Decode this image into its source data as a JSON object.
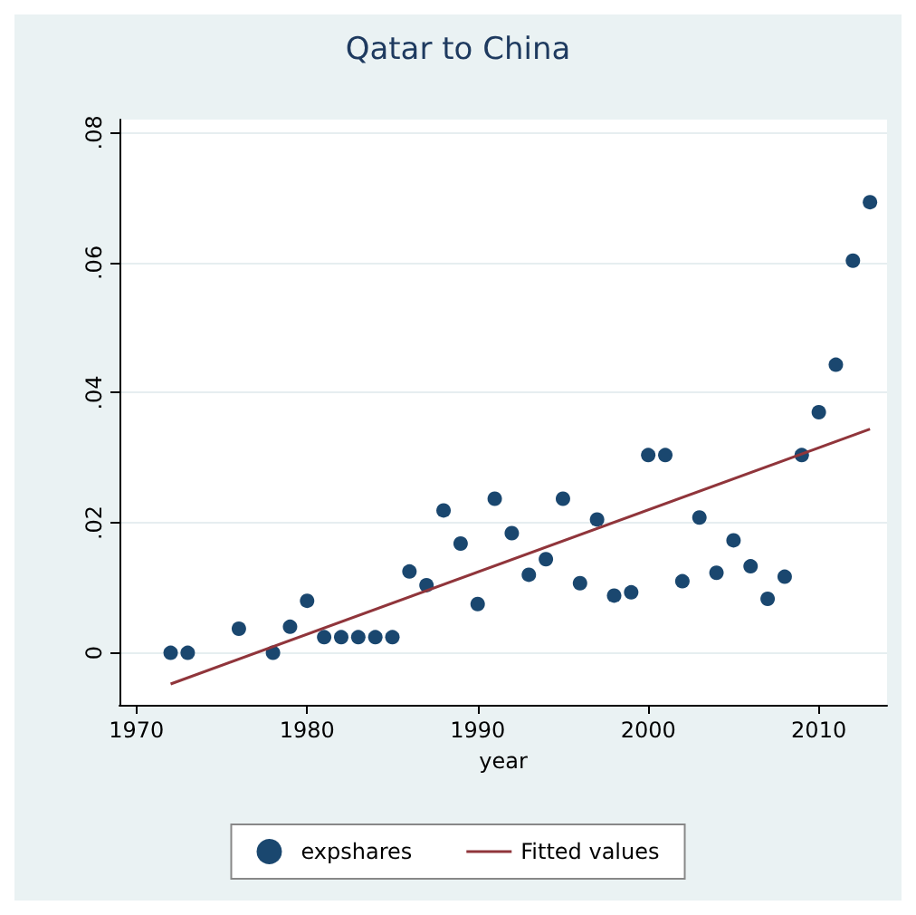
{
  "chart_data": {
    "type": "scatter",
    "title": "Qatar to China",
    "xlabel": "year",
    "xlim": [
      1969,
      2014
    ],
    "xticks": [
      1970,
      1980,
      1990,
      2000,
      2010
    ],
    "ylim": [
      -0.008,
      0.082
    ],
    "yticks": [
      {
        "value": 0,
        "label": "0"
      },
      {
        "value": 0.02,
        "label": ".02"
      },
      {
        "value": 0.04,
        "label": ".04"
      },
      {
        "value": 0.06,
        "label": ".06"
      },
      {
        "value": 0.08,
        "label": ".08"
      }
    ],
    "grid": "y",
    "legend": "bottom",
    "marker": "circle",
    "series": [
      {
        "name": "expshares",
        "color": "#1a476f",
        "x": [
          1972,
          1973,
          1976,
          1978,
          1979,
          1980,
          1981,
          1982,
          1983,
          1984,
          1985,
          1986,
          1987,
          1988,
          1989,
          1990,
          1991,
          1992,
          1993,
          1994,
          1995,
          1996,
          1997,
          1998,
          1999,
          2000,
          2001,
          2002,
          2003,
          2004,
          2005,
          2006,
          2007,
          2008,
          2009,
          2010,
          2011,
          2012,
          2013
        ],
        "values": [
          0,
          0,
          0.0037,
          0,
          0.004,
          0.008,
          0.0024,
          0.0024,
          0.0024,
          0.0024,
          0.0024,
          0.0125,
          0.0104,
          0.0219,
          0.0168,
          0.0075,
          0.0237,
          0.0184,
          0.012,
          0.0144,
          0.0237,
          0.0107,
          0.0205,
          0.0088,
          0.0093,
          0.0304,
          0.0304,
          0.011,
          0.0208,
          0.0123,
          0.0173,
          0.0133,
          0.0083,
          0.0117,
          0.0304,
          0.037,
          0.0443,
          0.0603,
          0.0693
        ]
      },
      {
        "name": "Fitted values",
        "type": "line",
        "color": "#90353b",
        "line_style": "solid",
        "marker": "none",
        "x": [
          1972,
          2013
        ],
        "values": [
          -0.0048,
          0.0344
        ]
      }
    ]
  }
}
